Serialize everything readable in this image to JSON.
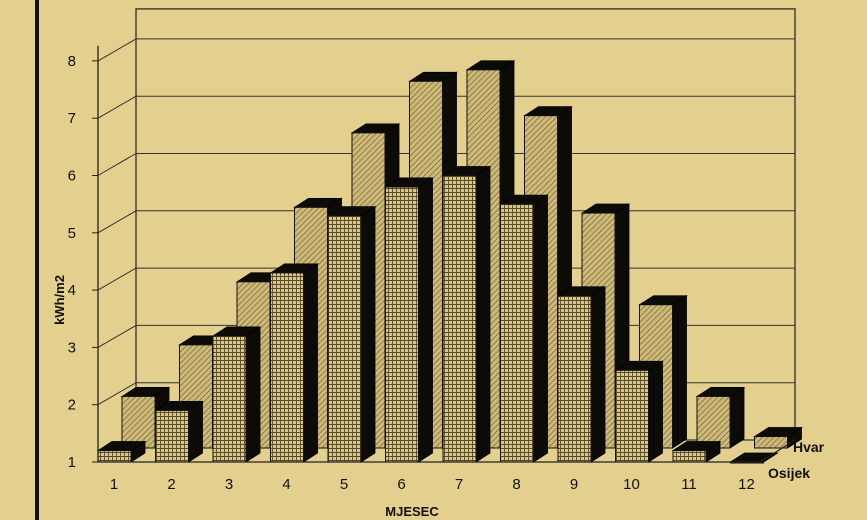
{
  "chart_data": {
    "type": "bar",
    "style": "3d",
    "title": "",
    "xlabel": "MJESEC",
    "ylabel": "kWh/m2",
    "categories": [
      "1",
      "2",
      "3",
      "4",
      "5",
      "6",
      "7",
      "8",
      "9",
      "10",
      "11",
      "12"
    ],
    "yticks": [
      "1",
      "2",
      "3",
      "4",
      "5",
      "6",
      "7",
      "8"
    ],
    "ylim": [
      1,
      8
    ],
    "grid": true,
    "legend_position": "bottom-right (depth axis)",
    "series": [
      {
        "name": "Hvar",
        "color": "#cdb978",
        "pattern": "hatched",
        "values": [
          1.9,
          2.8,
          3.9,
          5.2,
          6.5,
          7.4,
          7.6,
          6.8,
          5.1,
          3.5,
          1.9,
          1.2
        ]
      },
      {
        "name": "Osijek",
        "color": "#d8c690",
        "pattern": "grid",
        "values": [
          1.2,
          1.9,
          3.2,
          4.3,
          5.3,
          5.8,
          6.0,
          5.5,
          3.9,
          2.6,
          1.2,
          1.0
        ]
      }
    ]
  }
}
